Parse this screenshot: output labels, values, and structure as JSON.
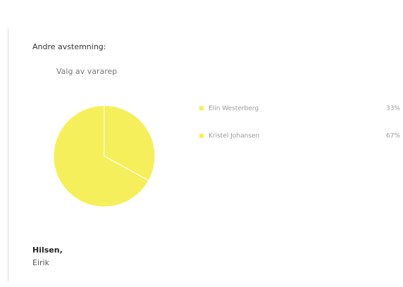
{
  "intro": "Andre avstemning:",
  "chart_data": {
    "type": "pie",
    "title": "Valg av vararep",
    "categories": [
      "Elin Westerberg",
      "Kristel Johansen"
    ],
    "values": [
      33,
      67
    ],
    "value_labels": [
      "33%",
      "67%"
    ],
    "colors": [
      "#f6ef5c",
      "#f6ef5c"
    ]
  },
  "signature": {
    "greeting": "Hilsen,",
    "name": "Eirik"
  }
}
